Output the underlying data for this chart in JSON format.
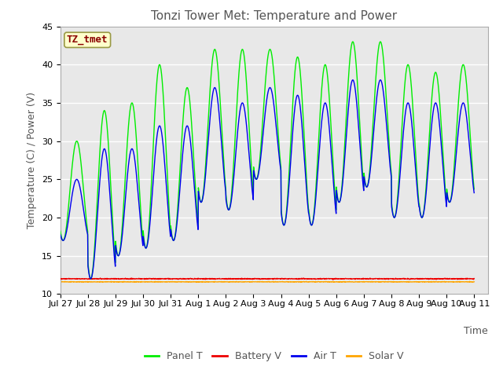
{
  "title": "Tonzi Tower Met: Temperature and Power",
  "xlabel": "Time",
  "ylabel": "Temperature (C) / Power (V)",
  "ylim": [
    10,
    45
  ],
  "annotation_text": "TZ_tmet",
  "annotation_color": "#8B0000",
  "annotation_bg": "#FFFFCC",
  "annotation_edge": "#999944",
  "fig_bg_color": "#FFFFFF",
  "plot_bg_color": "#E8E8E8",
  "grid_color": "#FFFFFF",
  "panel_t_color": "#00EE00",
  "battery_v_color": "#EE0000",
  "air_t_color": "#0000EE",
  "solar_v_color": "#FFA500",
  "line_width": 1.0,
  "x_tick_labels": [
    "Jul 27",
    "Jul 28",
    "Jul 29",
    "Jul 30",
    "Jul 31",
    "Aug 1",
    "Aug 2",
    "Aug 3",
    "Aug 4",
    "Aug 5",
    "Aug 6",
    "Aug 7",
    "Aug 8",
    "Aug 9",
    "Aug 10",
    "Aug 11"
  ],
  "x_tick_positions": [
    0,
    1,
    2,
    3,
    4,
    5,
    6,
    7,
    8,
    9,
    10,
    11,
    12,
    13,
    14,
    15
  ],
  "panel_peaks": [
    30,
    34,
    35,
    40,
    37,
    42,
    42,
    42,
    41,
    40,
    43,
    43,
    40,
    39,
    40
  ],
  "panel_mins": [
    17,
    12,
    15,
    16,
    17,
    22,
    21,
    25,
    19,
    19,
    22,
    24,
    20,
    20,
    22
  ],
  "air_peaks": [
    25,
    29,
    29,
    32,
    32,
    37,
    35,
    37,
    36,
    35,
    38,
    38,
    35,
    35,
    35
  ],
  "air_mins": [
    17,
    12,
    15,
    16,
    17,
    22,
    21,
    25,
    19,
    19,
    22,
    24,
    20,
    20,
    22
  ],
  "battery_v_base": 12.0,
  "solar_v_base": 11.6,
  "days": 15,
  "pts_per_day": 96,
  "xlim": [
    0,
    15.5
  ],
  "legend_labels": [
    "Panel T",
    "Battery V",
    "Air T",
    "Solar V"
  ],
  "tick_fontsize": 8,
  "label_fontsize": 9,
  "title_fontsize": 11
}
